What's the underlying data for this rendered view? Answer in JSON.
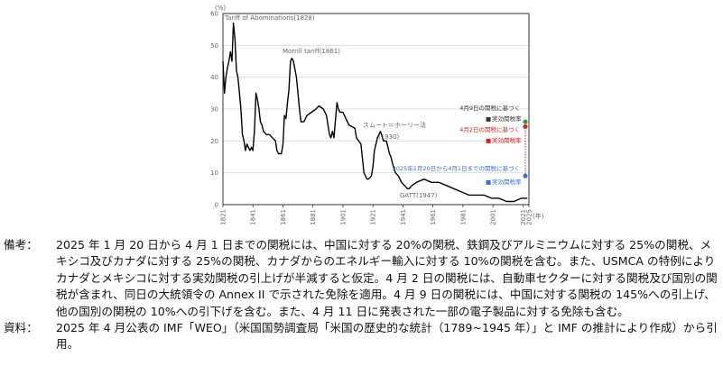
{
  "chart_data": {
    "type": "line",
    "y_unit": "(%)",
    "x_unit": "(年)",
    "ylim": [
      0,
      60
    ],
    "xlim": [
      1821,
      2025
    ],
    "yticks": [
      0,
      10,
      20,
      30,
      40,
      50,
      60
    ],
    "xticks": [
      "1821",
      "1841",
      "1861",
      "1881",
      "1901",
      "1921",
      "1941",
      "1961",
      "1981",
      "2001",
      "2021",
      "2025"
    ],
    "grid": true,
    "series": [
      {
        "x": [
          1821,
          1822,
          1823,
          1824,
          1825,
          1826,
          1827,
          1828,
          1829,
          1830,
          1831,
          1832,
          1833,
          1834,
          1835,
          1836,
          1837,
          1838,
          1839,
          1840,
          1841,
          1842,
          1843,
          1844,
          1845,
          1846,
          1847,
          1848,
          1850,
          1852,
          1854,
          1856,
          1857,
          1858,
          1860,
          1861,
          1862,
          1863,
          1864,
          1865,
          1866,
          1867,
          1868,
          1870,
          1872,
          1873,
          1875,
          1877,
          1880,
          1883,
          1885,
          1888,
          1890,
          1892,
          1893,
          1894,
          1895,
          1897,
          1898,
          1899,
          1901,
          1905,
          1909,
          1910,
          1913,
          1915,
          1916,
          1917,
          1918,
          1920,
          1921,
          1922,
          1924,
          1926,
          1928,
          1930,
          1931,
          1932,
          1933,
          1934,
          1936,
          1938,
          1940,
          1942,
          1944,
          1945,
          1947,
          1950,
          1955,
          1960,
          1965,
          1970,
          1975,
          1980,
          1985,
          1990,
          1995,
          2000,
          2005,
          2010,
          2015,
          2020,
          2022,
          2023,
          2024
        ],
        "values": [
          45,
          35,
          40,
          43,
          45,
          48,
          45,
          57,
          52,
          42,
          40,
          35,
          30,
          22,
          20,
          17,
          19,
          18,
          17,
          18,
          17,
          23,
          35,
          33,
          30,
          26,
          25,
          23,
          22,
          22,
          21,
          20,
          17,
          16,
          16,
          19,
          28,
          27,
          32,
          36,
          45,
          46,
          45,
          40,
          30,
          26,
          26,
          28,
          29,
          30,
          31,
          30,
          28,
          22,
          21,
          23,
          21,
          32,
          30,
          29,
          29,
          25,
          24,
          21,
          19,
          10,
          9,
          8,
          8,
          9,
          12,
          17,
          21,
          23,
          20,
          20,
          18,
          16,
          15,
          13,
          10,
          9,
          7,
          6,
          5,
          5,
          6,
          7,
          8,
          7,
          7,
          6,
          5,
          4,
          3,
          3,
          3,
          2,
          2,
          1,
          1,
          2,
          2,
          2,
          2
        ]
      }
    ],
    "annotations": [
      {
        "text": "Tariff of Abominations(1828)",
        "x": 1828,
        "y": 57
      },
      {
        "text": "Morrill tariff(1861)",
        "x": 1861,
        "y": 46
      },
      {
        "text": "スムート＝ホーリー法",
        "x": 1930,
        "y": 20
      },
      {
        "text": "(1930)",
        "x": 1930,
        "y": 20
      },
      {
        "text": "GATT(1947)",
        "x": 1947,
        "y": 6
      }
    ],
    "markers": [
      {
        "label": "4月9日の関税に基づく",
        "sublabel": "実効関税率",
        "x": 2025,
        "y": 26,
        "color": "#2e9a3e",
        "label_color": "#333333"
      },
      {
        "label": "4月2日の関税に基づく",
        "sublabel": "実効関税率",
        "x": 2025,
        "y": 24.5,
        "color": "#e02020",
        "label_color": "#e02020"
      },
      {
        "label": "2025年1月20日から4月1日までの関税に基づく",
        "sublabel": "実効関税率",
        "x": 2025,
        "y": 9,
        "color": "#3a6fd8",
        "label_color": "#3a6fd8"
      }
    ]
  },
  "notes": [
    {
      "label": "備考：",
      "text": "2025 年 1 月 20 日から 4 月 1 日までの関税には、中国に対する 20%の関税、鉄鋼及びアルミニウムに対する 25%の関税、メキシコ及びカナダに対する 25%の関税、カナダからのエネルギー輸入に対する 10%の関税を含む。また、USMCA の特例によりカナダとメキシコに対する実効関税の引上げが半減すると仮定。4 月 2 日の関税には、自動車セクターに対する関税及び国別の関税が含まれ、同日の大統領令の Annex II で示された免除を適用。4 月 9 日の関税には、中国に対する関税の 145%への引上げ、他の国別の関税の 10%への引下げを含む。また、4 月 11 日に発表された一部の電子製品に対する免除も含む。"
    },
    {
      "label": "資料：",
      "text": "2025 年 4 月公表の IMF「WEO」（米国国勢調査局「米国の歴史的な統計（1789~1945 年）」と IMF の推計により作成）から引用。"
    }
  ]
}
